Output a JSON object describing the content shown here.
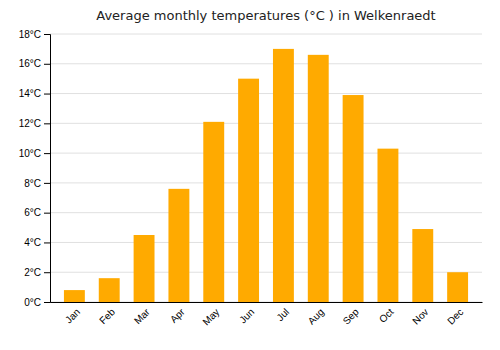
{
  "chart_data": {
    "type": "bar",
    "title": "Average monthly temperatures (°C ) in Welkenraedt",
    "categories": [
      "Jan",
      "Feb",
      "Mar",
      "Apr",
      "May",
      "Jun",
      "Jul",
      "Aug",
      "Sep",
      "Oct",
      "Nov",
      "Dec"
    ],
    "values": [
      0.8,
      1.6,
      4.5,
      7.6,
      12.1,
      15.0,
      17.0,
      16.6,
      13.9,
      10.3,
      4.9,
      2.0
    ],
    "color": "#FFAA00",
    "ylim": [
      0,
      18
    ],
    "yticks": [
      {
        "value": 0,
        "label": "0°C"
      },
      {
        "value": 2,
        "label": "2°C"
      },
      {
        "value": 4,
        "label": "4°C"
      },
      {
        "value": 6,
        "label": "6°C"
      },
      {
        "value": 8,
        "label": "8°C"
      },
      {
        "value": 10,
        "label": "10°C"
      },
      {
        "value": 12,
        "label": "12°C"
      },
      {
        "value": 14,
        "label": "14°C"
      },
      {
        "value": 16,
        "label": "16°C"
      },
      {
        "value": 18,
        "label": "18°C"
      }
    ],
    "grid": true
  }
}
